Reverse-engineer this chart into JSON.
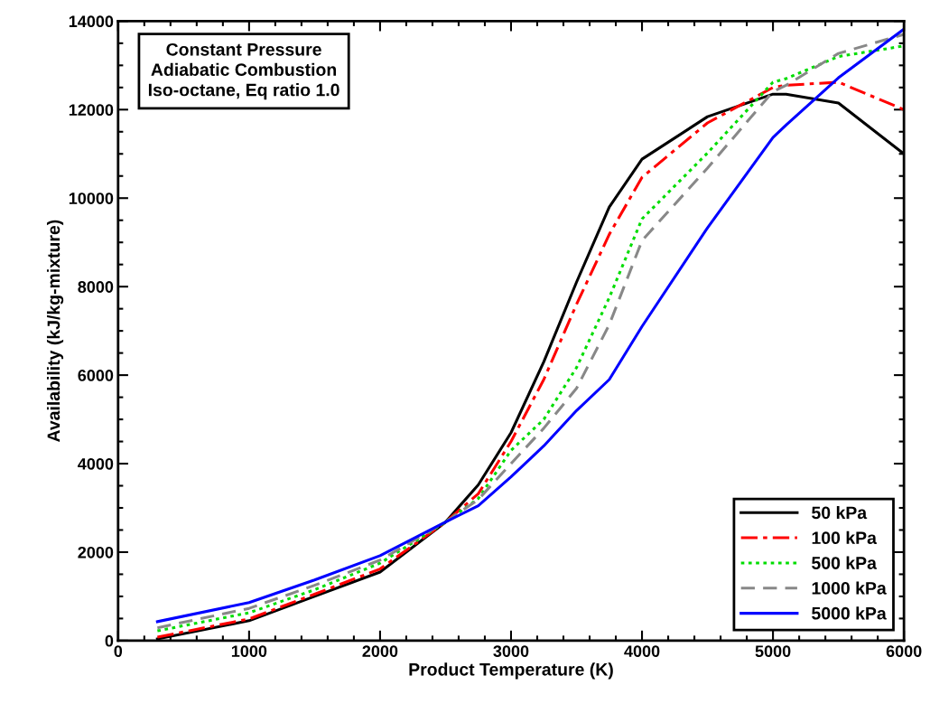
{
  "chart_data": {
    "type": "line",
    "xlabel": "Product Temperature (K)",
    "ylabel": "Availability (kJ/kg-mixture)",
    "annotations": [
      "Constant Pressure\nAdiabatic Combustion\nIso-octane, Eq ratio 1.0"
    ],
    "x": [
      300,
      1000,
      1500,
      2000,
      2500,
      2750,
      3000,
      3250,
      3500,
      3750,
      4000,
      4500,
      5000,
      5100,
      5500,
      6000
    ],
    "series": [
      {
        "name": "50 kPa",
        "color": "#000000",
        "line_style": "solid",
        "values": [
          40,
          450,
          1000,
          1550,
          2680,
          3520,
          4700,
          6300,
          8100,
          9800,
          10880,
          11840,
          12350,
          12350,
          12150,
          11000
        ]
      },
      {
        "name": "100 kPa",
        "color": "#ff0000",
        "line_style": "dashdot",
        "values": [
          80,
          490,
          1050,
          1620,
          2680,
          3320,
          4500,
          5900,
          7600,
          9180,
          10470,
          11700,
          12500,
          12550,
          12620,
          12000
        ]
      },
      {
        "name": "500 kPa",
        "color": "#00dd00",
        "line_style": "dotted",
        "values": [
          220,
          630,
          1150,
          1750,
          2680,
          3210,
          4300,
          5000,
          6170,
          7750,
          9530,
          11020,
          12620,
          12700,
          13200,
          13440
        ]
      },
      {
        "name": "1000 kPa",
        "color": "#888888",
        "line_style": "dashed",
        "values": [
          290,
          730,
          1250,
          1820,
          2680,
          3190,
          4000,
          4800,
          5700,
          7140,
          9040,
          10680,
          12410,
          12550,
          13270,
          13700
        ]
      },
      {
        "name": "5000 kPa",
        "color": "#0000ff",
        "line_style": "solid",
        "values": [
          430,
          860,
          1370,
          1920,
          2680,
          3050,
          3700,
          4400,
          5200,
          5900,
          7100,
          9330,
          11370,
          11650,
          12720,
          13820
        ]
      }
    ],
    "xlim": [
      0,
      6000
    ],
    "xticks": [
      0,
      1000,
      2000,
      3000,
      4000,
      5000,
      6000
    ],
    "ylim": [
      0,
      14000
    ],
    "yticks": [
      0,
      2000,
      4000,
      6000,
      8000,
      10000,
      12000,
      14000
    ],
    "grid": false,
    "legend": "bottom right"
  }
}
